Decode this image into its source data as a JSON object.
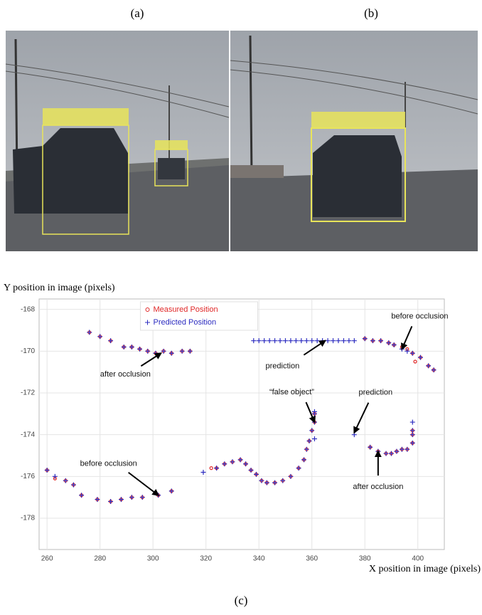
{
  "panels": [
    "(a)",
    "(b)",
    "(c)"
  ],
  "chart_data": {
    "type": "scatter",
    "ylabel": "Y position in image (pixels)",
    "xlabel": "X position in image (pixels)",
    "xlim": [
      257,
      410
    ],
    "ylim": [
      -179.5,
      -167.5
    ],
    "xticks": [
      260,
      280,
      300,
      320,
      340,
      360,
      380,
      400
    ],
    "yticks": [
      -168,
      -170,
      -172,
      -174,
      -176,
      -178
    ],
    "grid": true,
    "legend": "upper center",
    "series": [
      {
        "name": "Measured Position",
        "color": "#e02828",
        "marker": "o",
        "x": [
          276,
          280,
          284,
          289,
          292,
          295,
          298,
          301,
          304,
          307,
          311,
          314,
          380,
          383,
          386,
          389,
          391,
          394,
          396,
          398,
          399,
          401,
          404,
          406,
          260,
          263,
          267,
          270,
          273,
          279,
          284,
          288,
          292,
          296,
          302,
          307,
          322,
          324,
          327,
          330,
          333,
          335,
          337,
          339,
          341,
          343,
          346,
          349,
          352,
          355,
          357,
          358,
          359,
          360,
          361,
          361,
          382,
          385,
          388,
          390,
          392,
          394,
          396,
          398,
          398,
          398
        ],
        "values": [
          -169.1,
          -169.3,
          -169.5,
          -169.8,
          -169.8,
          -169.9,
          -170.0,
          -170.1,
          -170.0,
          -170.1,
          -170.0,
          -170.0,
          -169.4,
          -169.5,
          -169.5,
          -169.6,
          -169.7,
          -169.8,
          -169.9,
          -170.1,
          -170.5,
          -170.3,
          -170.7,
          -170.9,
          -175.7,
          -176.1,
          -176.2,
          -176.4,
          -176.9,
          -177.1,
          -177.2,
          -177.1,
          -177.0,
          -177.0,
          -176.9,
          -176.7,
          -175.6,
          -175.6,
          -175.4,
          -175.3,
          -175.2,
          -175.4,
          -175.7,
          -175.9,
          -176.2,
          -176.3,
          -176.3,
          -176.2,
          -176.0,
          -175.6,
          -175.2,
          -174.7,
          -174.3,
          -173.8,
          -173.4,
          -173.0,
          -174.6,
          -174.8,
          -174.9,
          -174.9,
          -174.8,
          -174.7,
          -174.7,
          -174.4,
          -174.0,
          -173.8
        ]
      },
      {
        "name": "Predicted Position",
        "color": "#2c2cc0",
        "marker": "+",
        "x": [
          276,
          280,
          284,
          289,
          292,
          295,
          298,
          301,
          304,
          307,
          311,
          314,
          338,
          340,
          342,
          344,
          346,
          348,
          350,
          352,
          354,
          356,
          358,
          360,
          362,
          364,
          366,
          368,
          370,
          372,
          374,
          376,
          380,
          383,
          386,
          389,
          391,
          394,
          396,
          398,
          401,
          404,
          406,
          260,
          263,
          267,
          270,
          273,
          279,
          284,
          288,
          292,
          296,
          302,
          307,
          319,
          324,
          327,
          330,
          333,
          335,
          337,
          339,
          341,
          343,
          346,
          349,
          352,
          355,
          357,
          358,
          359,
          360,
          361,
          361,
          361,
          361,
          376,
          382,
          385,
          388,
          390,
          392,
          394,
          396,
          398,
          398,
          398,
          398
        ],
        "values": [
          -169.1,
          -169.3,
          -169.5,
          -169.8,
          -169.8,
          -169.9,
          -170.0,
          -170.1,
          -170.0,
          -170.1,
          -170.0,
          -170.0,
          -169.5,
          -169.5,
          -169.5,
          -169.5,
          -169.5,
          -169.5,
          -169.5,
          -169.5,
          -169.5,
          -169.5,
          -169.5,
          -169.5,
          -169.5,
          -169.5,
          -169.5,
          -169.5,
          -169.5,
          -169.5,
          -169.5,
          -169.5,
          -169.4,
          -169.5,
          -169.5,
          -169.6,
          -169.7,
          -169.9,
          -170.0,
          -170.1,
          -170.3,
          -170.7,
          -170.9,
          -175.7,
          -176.0,
          -176.2,
          -176.4,
          -176.9,
          -177.1,
          -177.2,
          -177.1,
          -177.0,
          -177.0,
          -176.9,
          -176.7,
          -175.8,
          -175.6,
          -175.4,
          -175.3,
          -175.2,
          -175.4,
          -175.7,
          -175.9,
          -176.2,
          -176.3,
          -176.3,
          -176.2,
          -176.0,
          -175.6,
          -175.2,
          -174.7,
          -174.3,
          -173.8,
          -173.4,
          -173.0,
          -172.9,
          -174.2,
          -174.0,
          -174.6,
          -174.8,
          -174.9,
          -174.9,
          -174.8,
          -174.7,
          -174.7,
          -174.4,
          -174.0,
          -173.8,
          -173.4
        ]
      }
    ],
    "annotations": [
      "after occlusion",
      "prediction",
      "before occlusion",
      "“false object”",
      "prediction",
      "after occlusion",
      "before occlusion"
    ]
  }
}
